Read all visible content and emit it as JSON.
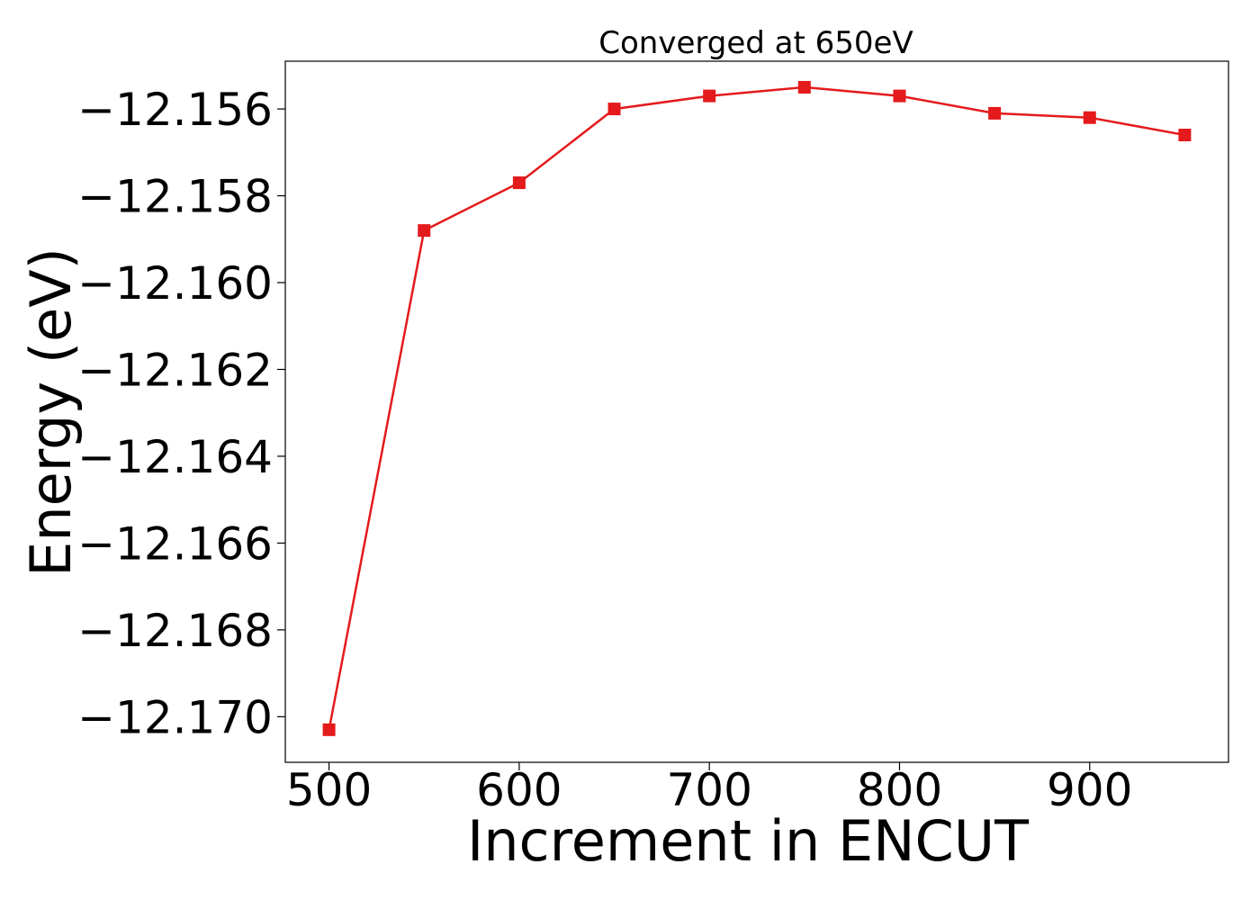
{
  "chart_data": {
    "type": "line",
    "title": "Converged at 650eV",
    "xlabel": "Increment in ENCUT",
    "ylabel": "Energy (eV)",
    "xlim": [
      477,
      973
    ],
    "ylim": [
      -12.17105,
      -12.1549
    ],
    "xticks": [
      500,
      600,
      700,
      800,
      900
    ],
    "xtick_labels": [
      "500",
      "600",
      "700",
      "800",
      "900"
    ],
    "yticks": [
      -12.156,
      -12.158,
      -12.16,
      -12.162,
      -12.164,
      -12.166,
      -12.168,
      -12.17
    ],
    "ytick_labels": [
      "−12.156",
      "−12.158",
      "−12.160",
      "−12.162",
      "−12.164",
      "−12.166",
      "−12.168",
      "−12.170"
    ],
    "grid": false,
    "series": [
      {
        "x": [
          500,
          550,
          600,
          650,
          700,
          750,
          800,
          850,
          900,
          950
        ],
        "y": [
          -12.1703,
          -12.1588,
          -12.1577,
          -12.156,
          -12.1557,
          -12.1555,
          -12.1557,
          -12.1561,
          -12.1562,
          -12.1566
        ],
        "color": "#e41a1c",
        "marker": "square"
      }
    ]
  }
}
